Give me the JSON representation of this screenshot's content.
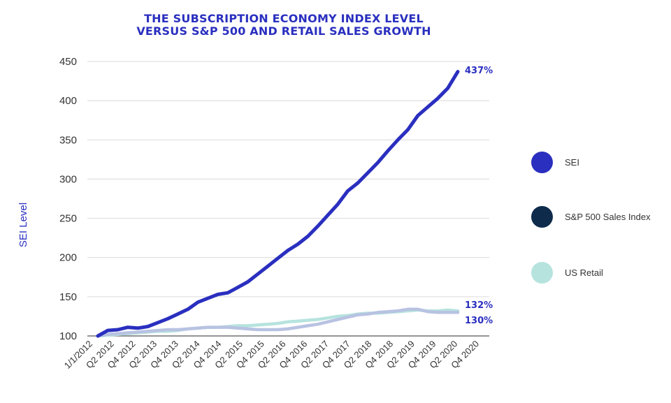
{
  "chart_data": {
    "type": "line",
    "title_lines": [
      "THE SUBSCRIPTION ECONOMY INDEX LEVEL",
      "VERSUS S&P 500 AND RETAIL SALES GROWTH"
    ],
    "ylabel": "SEI Level",
    "xlabel": "",
    "ylim": [
      100,
      450
    ],
    "yticks": [
      100,
      150,
      200,
      250,
      300,
      350,
      400,
      450
    ],
    "x_tick_labels": [
      "1/1/2012",
      "Q2 2012",
      "Q4 2012",
      "Q2 2013",
      "Q4 2013",
      "Q2 2014",
      "Q4 2014",
      "Q2 2015",
      "Q4 2015",
      "Q2 2016",
      "Q4 2016",
      "Q2 2017",
      "Q4 2017",
      "Q2 2018",
      "Q4 2018",
      "Q2 2019",
      "Q4 2019",
      "Q2 2020",
      "Q4 2020"
    ],
    "points_per_series": 37,
    "series": [
      {
        "name": "SEI",
        "color": "#2a2fbf",
        "end_label": "437%",
        "values": [
          100,
          107,
          108,
          111,
          110,
          112,
          117,
          122,
          128,
          134,
          143,
          148,
          153,
          155,
          162,
          169,
          179,
          189,
          199,
          209,
          217,
          227,
          240,
          254,
          268,
          285,
          295,
          308,
          321,
          336,
          350,
          363,
          381,
          392,
          403,
          416,
          437
        ]
      },
      {
        "name": "S&P 500 Sales Index",
        "color": "#b8c2e2",
        "end_label": "130%",
        "values": [
          100,
          102,
          103,
          104,
          105,
          106,
          107,
          108,
          108,
          109,
          110,
          111,
          111,
          111,
          110,
          109,
          108,
          108,
          108,
          109,
          111,
          113,
          115,
          118,
          121,
          124,
          127,
          128,
          130,
          131,
          132,
          134,
          134,
          131,
          130,
          130,
          130
        ]
      },
      {
        "name": "US Retail",
        "color": "#b6e3de",
        "end_label": "132%",
        "values": [
          100,
          101,
          102,
          103,
          104,
          105,
          106,
          106,
          107,
          109,
          110,
          111,
          111,
          112,
          113,
          113,
          114,
          115,
          116,
          118,
          119,
          120,
          121,
          123,
          125,
          126,
          128,
          129,
          129,
          130,
          131,
          132,
          133,
          132,
          132,
          133,
          132
        ]
      }
    ],
    "legend": {
      "position": "right",
      "items": [
        {
          "label": "SEI",
          "color": "#2a2fbf"
        },
        {
          "label": "S&P 500 Sales Index",
          "color": "#0f2b4c"
        },
        {
          "label": "US Retail",
          "color": "#b6e3de"
        }
      ]
    }
  }
}
